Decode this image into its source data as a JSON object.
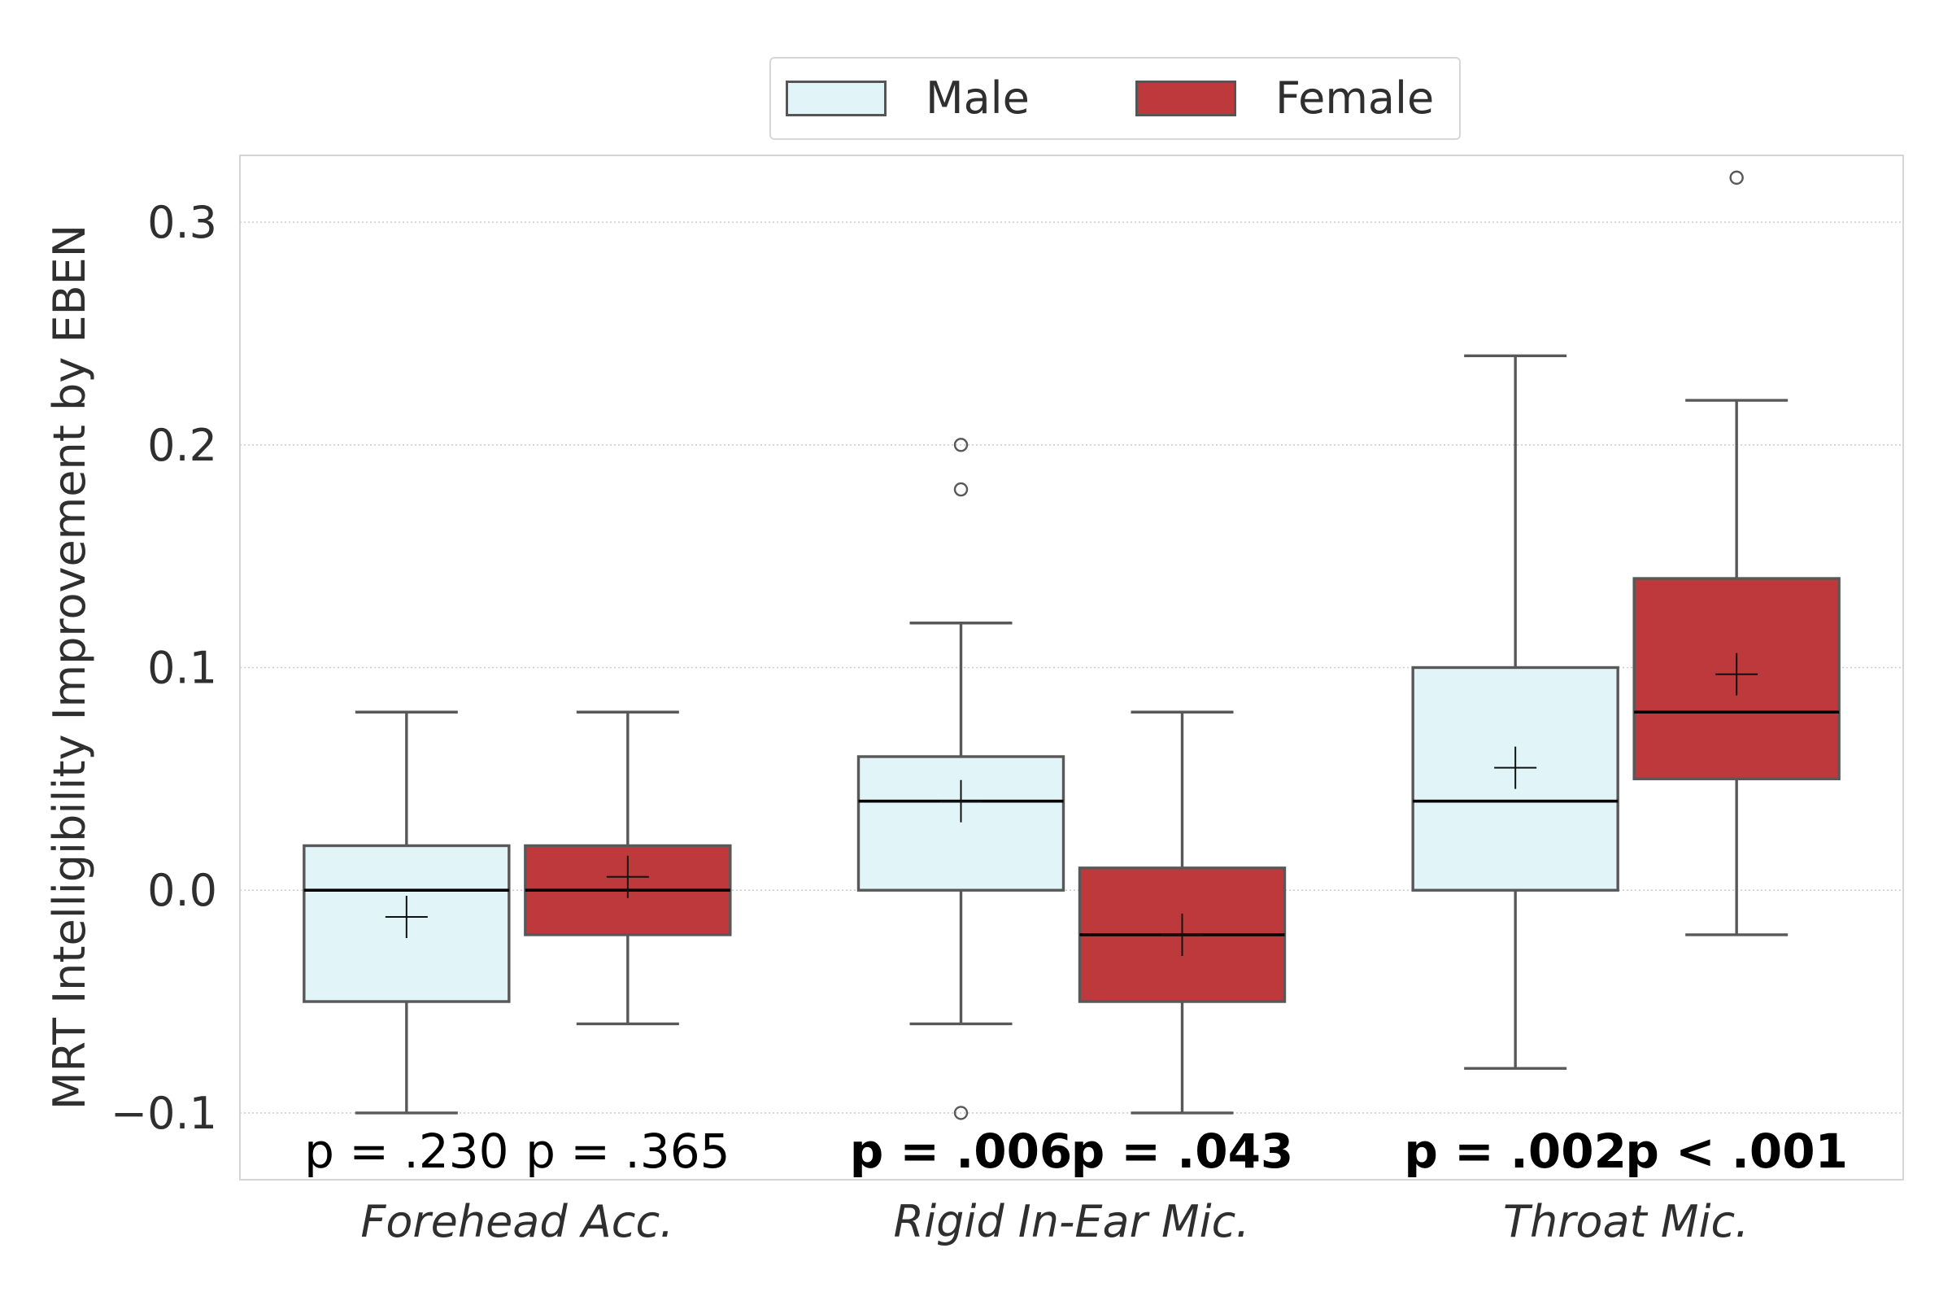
{
  "chart_data": {
    "type": "box",
    "ylabel": "MRT Intelligibility Improvement by EBEN",
    "xlabel": "",
    "ylim": [
      -0.13,
      0.33
    ],
    "yticks": [
      -0.1,
      0.0,
      0.1,
      0.2,
      0.3
    ],
    "ytick_labels": [
      "−0.1",
      "0.0",
      "0.1",
      "0.2",
      "0.3"
    ],
    "grid": "horizontal dotted",
    "legend": {
      "placement": "top-center, outside",
      "entries": [
        {
          "name": "Male",
          "color": "#e1f5f8"
        },
        {
          "name": "Female",
          "color": "#be393b"
        }
      ]
    },
    "categories": [
      "Forehead Acc.",
      "Rigid In-Ear Mic.",
      "Throat Mic."
    ],
    "series": [
      {
        "name": "Male",
        "color": "#e1f5f8",
        "boxes": [
          {
            "whisker_low": -0.1,
            "q1": -0.05,
            "median": 0.0,
            "q3": 0.02,
            "whisker_high": 0.08,
            "mean": -0.012,
            "outliers": []
          },
          {
            "whisker_low": -0.06,
            "q1": 0.0,
            "median": 0.04,
            "q3": 0.06,
            "whisker_high": 0.12,
            "mean": 0.04,
            "outliers": [
              0.18,
              0.2,
              -0.1
            ]
          },
          {
            "whisker_low": -0.08,
            "q1": 0.0,
            "median": 0.04,
            "q3": 0.1,
            "whisker_high": 0.24,
            "mean": 0.055,
            "outliers": []
          }
        ]
      },
      {
        "name": "Female",
        "color": "#be393b",
        "boxes": [
          {
            "whisker_low": -0.06,
            "q1": -0.02,
            "median": 0.0,
            "q3": 0.02,
            "whisker_high": 0.08,
            "mean": 0.006,
            "outliers": []
          },
          {
            "whisker_low": -0.1,
            "q1": -0.05,
            "median": -0.02,
            "q3": 0.01,
            "whisker_high": 0.08,
            "mean": -0.02,
            "outliers": []
          },
          {
            "whisker_low": -0.02,
            "q1": 0.05,
            "median": 0.08,
            "q3": 0.14,
            "whisker_high": 0.22,
            "mean": 0.097,
            "outliers": [
              0.32
            ]
          }
        ]
      }
    ],
    "annotations": [
      {
        "category": "Forehead Acc.",
        "group": "Male",
        "text": "p = .230",
        "bold": false
      },
      {
        "category": "Forehead Acc.",
        "group": "Female",
        "text": "p = .365",
        "bold": false
      },
      {
        "category": "Rigid In-Ear Mic.",
        "group": "Male",
        "text": "p = .006",
        "bold": true
      },
      {
        "category": "Rigid In-Ear Mic.",
        "group": "Female",
        "text": "p = .043",
        "bold": true
      },
      {
        "category": "Throat Mic.",
        "group": "Male",
        "text": "p = .002",
        "bold": true
      },
      {
        "category": "Throat Mic.",
        "group": "Female",
        "text": "p < .001",
        "bold": true
      }
    ]
  }
}
